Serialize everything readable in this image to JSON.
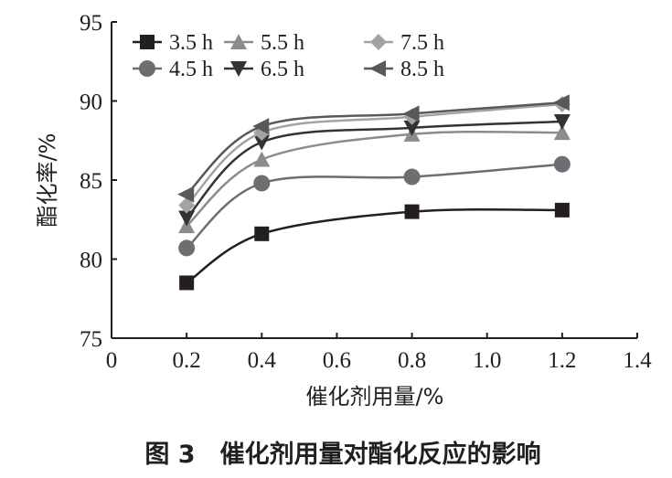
{
  "chart_data": {
    "type": "line",
    "title": "",
    "caption": "图 3　催化剂用量对酯化反应的影响",
    "xlabel": "催化剂用量/%",
    "ylabel": "酯化率/%",
    "xlim": [
      0,
      1.4
    ],
    "ylim": [
      75,
      95
    ],
    "xticks": [
      "0",
      "0.2",
      "0.4",
      "0.6",
      "0.8",
      "1.0",
      "1.2",
      "1.4"
    ],
    "yticks": [
      "75",
      "80",
      "85",
      "90",
      "95"
    ],
    "grid": false,
    "legend_position": "top-left",
    "x": [
      0.2,
      0.4,
      0.8,
      1.2
    ],
    "series": [
      {
        "name": "3.5 h",
        "marker": "square",
        "color": "#231f20",
        "values": [
          78.5,
          81.6,
          83.0,
          83.1
        ]
      },
      {
        "name": "4.5 h",
        "marker": "circle",
        "color": "#6d6e71",
        "values": [
          80.7,
          84.8,
          85.2,
          86.0
        ]
      },
      {
        "name": "5.5 h",
        "marker": "triangle-up",
        "color": "#8c8c8c",
        "values": [
          82.1,
          86.3,
          87.9,
          88.0
        ]
      },
      {
        "name": "6.5 h",
        "marker": "triangle-down",
        "color": "#333336",
        "values": [
          82.6,
          87.4,
          88.3,
          88.7
        ]
      },
      {
        "name": "7.5 h",
        "marker": "diamond",
        "color": "#a3a3a3",
        "values": [
          83.4,
          88.0,
          89.0,
          89.8
        ]
      },
      {
        "name": "8.5 h",
        "marker": "triangle-left",
        "color": "#58595b",
        "values": [
          84.1,
          88.4,
          89.2,
          89.9
        ]
      }
    ]
  }
}
